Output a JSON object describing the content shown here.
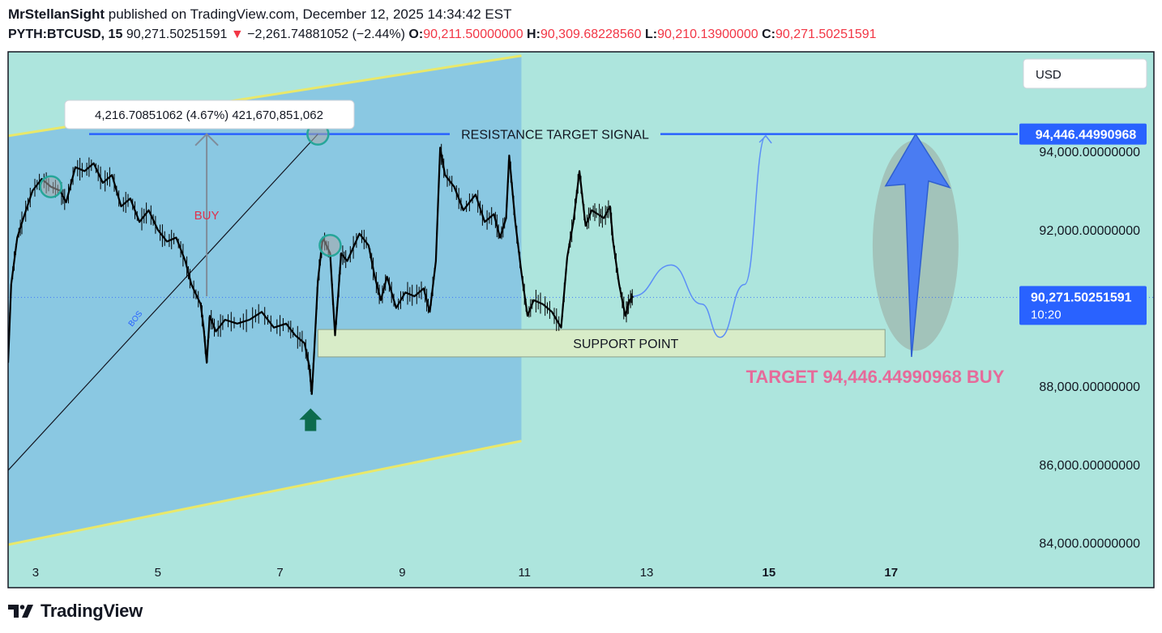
{
  "header": {
    "author": "MrStellanSight",
    "published_text": "published on TradingView.com, December 12, 2025 14:34:42 EST",
    "symbol": "PYTH:BTCUSD, 15",
    "last_price": "90,271.50251591",
    "change_arrow": "▼",
    "change": "−2,261.74881052 (−2.44%)",
    "o_label": "O:",
    "o_value": "90,211.50000000",
    "h_label": "H:",
    "h_value": "90,309.68228560",
    "l_label": "L:",
    "l_value": "90,210.13900000",
    "c_label": "C:",
    "c_value": "90,271.50251591"
  },
  "currency_button": "USD",
  "footer": {
    "brand": "TradingView"
  },
  "colors": {
    "background": "#ade5dd",
    "channel": "#8ac8e2",
    "channel_border": "#e9e86a",
    "resistance": "#2962ff",
    "price_label": "#2962ff",
    "support_box": "#d8ecc8",
    "target_text": "#e66a9a",
    "buy_text": "#e0304c",
    "circle": "#26a69a",
    "arrow_up": "#0d6b4d",
    "big_arrow": "#4a7cf2",
    "ellipse": "#9fb7ae",
    "candles": "#000000"
  },
  "chart_data": {
    "type": "line",
    "symbol": "PYTH:BTCUSD",
    "interval": "15",
    "x_ticks": [
      "3",
      "5",
      "7",
      "9",
      "11",
      "13",
      "15",
      "17"
    ],
    "x_tick_days": [
      3,
      5,
      7,
      9,
      11,
      13,
      15,
      17
    ],
    "xlim": [
      2.55,
      21.3
    ],
    "y_ticks": [
      "84,000.00000000",
      "86,000.00000000",
      "88,000.00000000",
      "92,000.00000000",
      "94,000.00000000"
    ],
    "y_tick_values": [
      84000,
      86000,
      88000,
      92000,
      94000
    ],
    "ylim": [
      82850,
      96550
    ],
    "price_series": {
      "x": [
        2.55,
        2.6,
        2.7,
        2.8,
        2.95,
        3.1,
        3.25,
        3.4,
        3.5,
        3.65,
        3.8,
        3.95,
        4.1,
        4.25,
        4.4,
        4.55,
        4.7,
        4.85,
        5.0,
        5.15,
        5.3,
        5.45,
        5.55,
        5.7,
        5.75,
        5.8,
        5.85,
        5.95,
        6.1,
        6.3,
        6.5,
        6.7,
        6.9,
        7.1,
        7.25,
        7.4,
        7.48,
        7.52,
        7.56,
        7.62,
        7.7,
        7.82,
        7.9,
        7.95,
        8.0,
        8.1,
        8.3,
        8.45,
        8.55,
        8.65,
        8.75,
        8.9,
        9.05,
        9.2,
        9.35,
        9.45,
        9.55,
        9.62,
        9.7,
        9.85,
        10.0,
        10.2,
        10.35,
        10.5,
        10.6,
        10.7,
        10.75,
        10.85,
        10.95,
        11.05,
        11.15,
        11.3,
        11.45,
        11.6,
        11.7,
        11.8,
        11.9,
        12.0,
        12.1,
        12.2,
        12.3,
        12.4,
        12.45,
        12.55,
        12.65,
        12.72,
        12.78
      ],
      "y": [
        88600,
        90600,
        91800,
        92300,
        93000,
        93300,
        93100,
        93000,
        92700,
        93600,
        93500,
        93700,
        93200,
        93400,
        92600,
        92800,
        92200,
        92500,
        92000,
        91700,
        91800,
        91200,
        90600,
        90100,
        89500,
        88600,
        89800,
        89400,
        89700,
        89600,
        89700,
        89900,
        89500,
        89600,
        89300,
        89100,
        88500,
        87800,
        88900,
        90700,
        91800,
        91400,
        89300,
        90300,
        91400,
        91200,
        91900,
        91600,
        90800,
        90200,
        90800,
        90000,
        90400,
        90300,
        90500,
        89900,
        91200,
        94100,
        93400,
        93100,
        92500,
        92900,
        92200,
        92400,
        91800,
        92300,
        93900,
        92200,
        90900,
        89800,
        90200,
        90100,
        89900,
        89500,
        91300,
        92200,
        93500,
        92100,
        92500,
        92400,
        92300,
        92600,
        91700,
        90600,
        89800,
        90200,
        90300
      ]
    },
    "projection_path": {
      "x": [
        12.78,
        13.4,
        13.9,
        14.2,
        14.6,
        14.95
      ],
      "y": [
        90300,
        91100,
        90100,
        89250,
        90600,
        94400
      ]
    },
    "last_price": 90271.50251591,
    "last_price_label": "90,271.50251591",
    "last_price_countdown": "10:20",
    "resistance_level": 94446.44990968,
    "resistance_label": "94,446.44990968",
    "resistance_text": "RESISTANCE  TARGET  SIGNAL",
    "support_zone": {
      "x_start": 7.62,
      "x_end": 16.9,
      "y_low": 88750,
      "y_high": 89450,
      "label": "SUPPORT  POINT"
    },
    "channel": {
      "upper_start": [
        2.55,
        94400
      ],
      "upper_end": [
        10.95,
        96450
      ],
      "lower_start": [
        2.55,
        83950
      ],
      "lower_end": [
        10.95,
        86600
      ],
      "x_start": 2.55,
      "x_end": 10.95
    },
    "bos_line": {
      "from": [
        2.55,
        85850
      ],
      "to": [
        7.62,
        94446.45
      ],
      "label": "BOS"
    },
    "measure": {
      "x": 5.8,
      "y_from": 90300,
      "y_to": 94446.45,
      "label": "BUY",
      "tooltip": "4,216.70851062 (4.67%) 421,670,851,062",
      "tooltip_at": [
        3.55,
        95250
      ]
    },
    "circles": [
      [
        3.25,
        93100
      ],
      [
        7.62,
        94446.45
      ],
      [
        7.82,
        91600
      ]
    ],
    "green_arrow": [
      7.5,
      87350
    ],
    "target_arrow": {
      "x": 17.4,
      "y_from": 88750,
      "y_to": 94446.45
    },
    "target_text": "TARGET 94,446.44990968 BUY"
  }
}
